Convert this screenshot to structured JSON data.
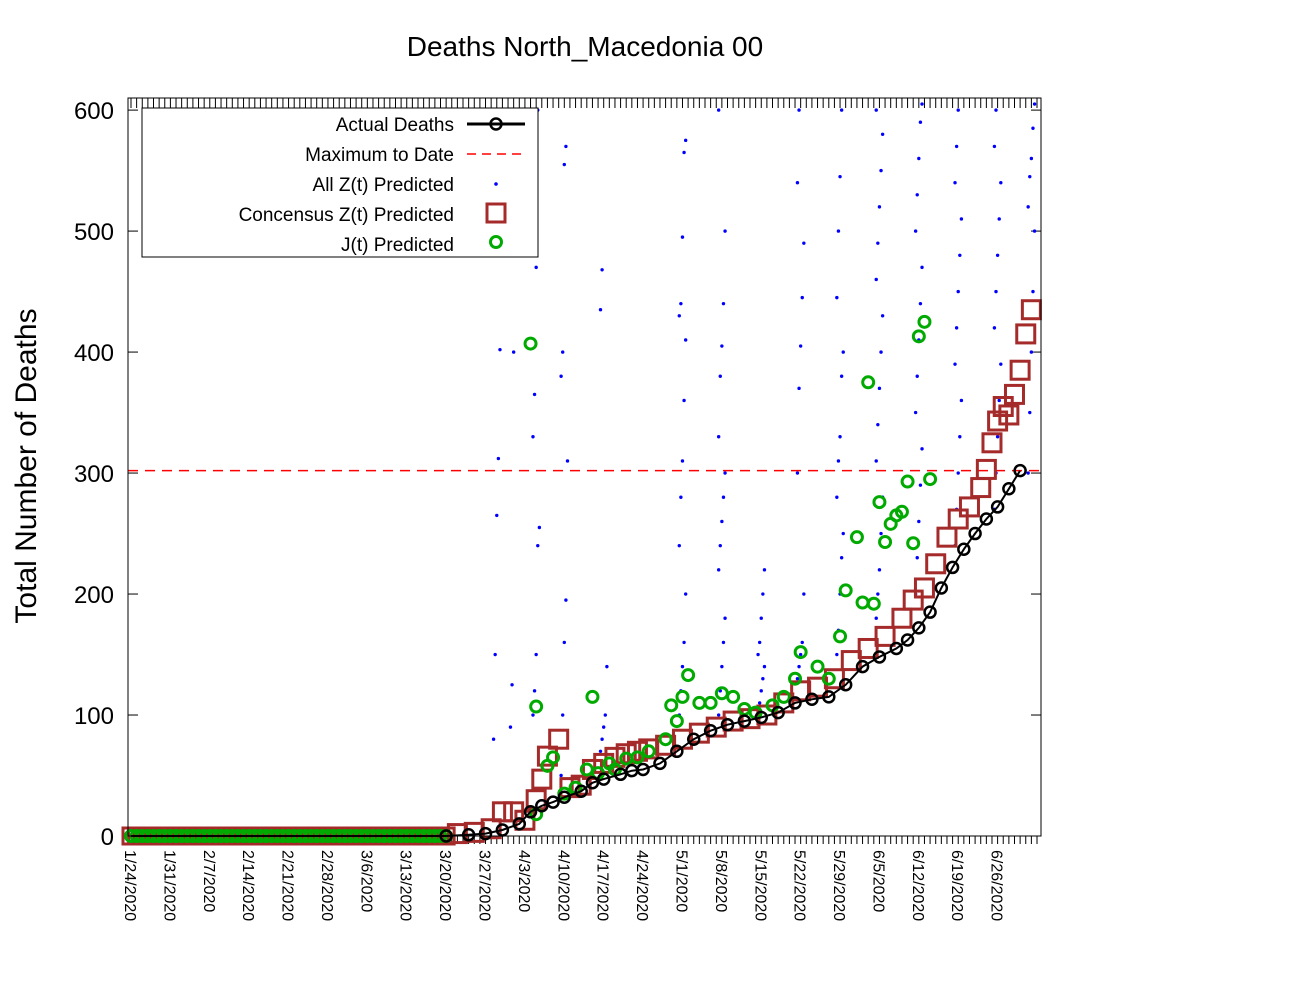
{
  "chart_data": {
    "type": "scatter",
    "title": "Deaths North_Macedonia 00",
    "ylabel": "Total Number of Deaths",
    "xlabel": "",
    "ylim": [
      0,
      610
    ],
    "y_ticks": [
      0,
      100,
      200,
      300,
      400,
      500,
      600
    ],
    "x_start_date": "1/24/2020",
    "x_end_date": "7/3/2020",
    "x_tick_labels": [
      "1/24/2020",
      "1/31/2020",
      "2/7/2020",
      "2/14/2020",
      "2/21/2020",
      "2/28/2020",
      "3/6/2020",
      "3/13/2020",
      "3/20/2020",
      "3/27/2020",
      "4/3/2020",
      "4/10/2020",
      "4/17/2020",
      "4/24/2020",
      "5/1/2020",
      "5/8/2020",
      "5/15/2020",
      "5/22/2020",
      "5/29/2020",
      "6/5/2020",
      "6/12/2020",
      "6/19/2020",
      "6/26/2020"
    ],
    "max_to_date": 302,
    "legend": {
      "placement": "top-left",
      "entries": [
        "Actual Deaths",
        "Maximum to Date",
        "All Z(t) Predicted",
        "Concensus Z(t) Predicted",
        "J(t) Predicted"
      ]
    },
    "colors": {
      "actual": "#000000",
      "max": "#ff0000",
      "all_z": "#0000ff",
      "consensus": "#a52a2a",
      "jt": "#00aa00"
    },
    "series": [
      {
        "name": "Actual Deaths",
        "points": [
          [
            "3/20/2020",
            0
          ],
          [
            "3/24/2020",
            1
          ],
          [
            "3/27/2020",
            2
          ],
          [
            "3/30/2020",
            5
          ],
          [
            "4/2/2020",
            10
          ],
          [
            "4/4/2020",
            20
          ],
          [
            "4/6/2020",
            25
          ],
          [
            "4/8/2020",
            28
          ],
          [
            "4/10/2020",
            32
          ],
          [
            "4/13/2020",
            37
          ],
          [
            "4/15/2020",
            44
          ],
          [
            "4/17/2020",
            47
          ],
          [
            "4/20/2020",
            51
          ],
          [
            "4/22/2020",
            54
          ],
          [
            "4/24/2020",
            55
          ],
          [
            "4/27/2020",
            60
          ],
          [
            "4/30/2020",
            70
          ],
          [
            "5/3/2020",
            80
          ],
          [
            "5/6/2020",
            87
          ],
          [
            "5/9/2020",
            92
          ],
          [
            "5/12/2020",
            95
          ],
          [
            "5/15/2020",
            98
          ],
          [
            "5/18/2020",
            102
          ],
          [
            "5/21/2020",
            110
          ],
          [
            "5/24/2020",
            113
          ],
          [
            "5/27/2020",
            115
          ],
          [
            "5/30/2020",
            125
          ],
          [
            "6/2/2020",
            140
          ],
          [
            "6/5/2020",
            148
          ],
          [
            "6/8/2020",
            155
          ],
          [
            "6/10/2020",
            162
          ],
          [
            "6/12/2020",
            172
          ],
          [
            "6/14/2020",
            185
          ],
          [
            "6/16/2020",
            205
          ],
          [
            "6/18/2020",
            222
          ],
          [
            "6/20/2020",
            237
          ],
          [
            "6/22/2020",
            250
          ],
          [
            "6/24/2020",
            262
          ],
          [
            "6/26/2020",
            272
          ],
          [
            "6/28/2020",
            287
          ],
          [
            "6/30/2020",
            302
          ]
        ]
      },
      {
        "name": "Concensus Z(t) Predicted",
        "points": [
          [
            "3/22/2020",
            2
          ],
          [
            "3/25/2020",
            3
          ],
          [
            "3/28/2020",
            6
          ],
          [
            "3/30/2020",
            20
          ],
          [
            "4/1/2020",
            20
          ],
          [
            "4/3/2020",
            13
          ],
          [
            "4/5/2020",
            30
          ],
          [
            "4/6/2020",
            47
          ],
          [
            "4/7/2020",
            66
          ],
          [
            "4/9/2020",
            80
          ],
          [
            "4/11/2020",
            40
          ],
          [
            "4/13/2020",
            42
          ],
          [
            "4/15/2020",
            55
          ],
          [
            "4/17/2020",
            60
          ],
          [
            "4/19/2020",
            65
          ],
          [
            "4/21/2020",
            68
          ],
          [
            "4/23/2020",
            70
          ],
          [
            "4/25/2020",
            72
          ],
          [
            "4/28/2020",
            75
          ],
          [
            "5/1/2020",
            80
          ],
          [
            "5/4/2020",
            85
          ],
          [
            "5/7/2020",
            90
          ],
          [
            "5/10/2020",
            95
          ],
          [
            "5/13/2020",
            97
          ],
          [
            "5/16/2020",
            100
          ],
          [
            "5/19/2020",
            110
          ],
          [
            "5/22/2020",
            120
          ],
          [
            "5/25/2020",
            123
          ],
          [
            "5/28/2020",
            130
          ],
          [
            "5/31/2020",
            145
          ],
          [
            "6/3/2020",
            155
          ],
          [
            "6/6/2020",
            165
          ],
          [
            "6/9/2020",
            180
          ],
          [
            "6/11/2020",
            195
          ],
          [
            "6/13/2020",
            205
          ],
          [
            "6/15/2020",
            225
          ],
          [
            "6/17/2020",
            247
          ],
          [
            "6/19/2020",
            262
          ],
          [
            "6/21/2020",
            272
          ],
          [
            "6/23/2020",
            288
          ],
          [
            "6/24/2020",
            303
          ],
          [
            "6/25/2020",
            325
          ],
          [
            "6/26/2020",
            343
          ],
          [
            "6/27/2020",
            355
          ],
          [
            "6/28/2020",
            348
          ],
          [
            "6/29/2020",
            365
          ],
          [
            "6/30/2020",
            385
          ],
          [
            "7/1/2020",
            415
          ],
          [
            "7/2/2020",
            435
          ]
        ]
      },
      {
        "name": "J(t) Predicted",
        "points": [
          [
            "4/5/2020",
            18
          ],
          [
            "4/4/2020",
            407
          ],
          [
            "4/5/2020",
            107
          ],
          [
            "4/7/2020",
            58
          ],
          [
            "4/8/2020",
            65
          ],
          [
            "4/10/2020",
            35
          ],
          [
            "4/12/2020",
            40
          ],
          [
            "4/14/2020",
            55
          ],
          [
            "4/15/2020",
            115
          ],
          [
            "4/16/2020",
            52
          ],
          [
            "4/18/2020",
            60
          ],
          [
            "4/19/2020",
            55
          ],
          [
            "4/21/2020",
            64
          ],
          [
            "4/23/2020",
            65
          ],
          [
            "4/25/2020",
            70
          ],
          [
            "4/28/2020",
            80
          ],
          [
            "4/29/2020",
            108
          ],
          [
            "4/30/2020",
            95
          ],
          [
            "5/1/2020",
            115
          ],
          [
            "5/2/2020",
            133
          ],
          [
            "5/4/2020",
            110
          ],
          [
            "5/6/2020",
            110
          ],
          [
            "5/8/2020",
            118
          ],
          [
            "5/10/2020",
            115
          ],
          [
            "5/12/2020",
            105
          ],
          [
            "5/14/2020",
            102
          ],
          [
            "5/17/2020",
            108
          ],
          [
            "5/19/2020",
            115
          ],
          [
            "5/21/2020",
            130
          ],
          [
            "5/22/2020",
            152
          ],
          [
            "5/25/2020",
            140
          ],
          [
            "5/27/2020",
            130
          ],
          [
            "5/29/2020",
            165
          ],
          [
            "5/30/2020",
            203
          ],
          [
            "6/1/2020",
            247
          ],
          [
            "6/2/2020",
            193
          ],
          [
            "6/3/2020",
            375
          ],
          [
            "6/4/2020",
            192
          ],
          [
            "6/5/2020",
            276
          ],
          [
            "6/6/2020",
            243
          ],
          [
            "6/7/2020",
            258
          ],
          [
            "6/8/2020",
            265
          ],
          [
            "6/9/2020",
            268
          ],
          [
            "6/10/2020",
            293
          ],
          [
            "6/11/2020",
            242
          ],
          [
            "6/12/2020",
            413
          ],
          [
            "6/13/2020",
            425
          ],
          [
            "6/14/2020",
            295
          ]
        ]
      },
      {
        "name": "All Z(t) Predicted",
        "clusters": [
          {
            "day": "3/29/2020",
            "values": [
              80,
              150,
              265,
              312,
              402
            ]
          },
          {
            "day": "4/1/2020",
            "values": [
              90,
              125,
              400,
              535,
              575
            ]
          },
          {
            "day": "4/5/2020",
            "values": [
              100,
              120,
              150,
              240,
              255,
              330,
              365,
              470,
              600
            ]
          },
          {
            "day": "4/10/2020",
            "values": [
              50,
              100,
              160,
              195,
              310,
              380,
              400,
              555,
              570
            ]
          },
          {
            "day": "4/17/2020",
            "values": [
              70,
              80,
              90,
              100,
              140,
              435,
              468
            ]
          },
          {
            "day": "5/1/2020",
            "values": [
              100,
              120,
              140,
              160,
              200,
              240,
              280,
              310,
              360,
              410,
              430,
              440,
              495,
              565,
              575
            ]
          },
          {
            "day": "5/8/2020",
            "values": [
              100,
              120,
              140,
              160,
              180,
              220,
              240,
              260,
              280,
              300,
              330,
              380,
              405,
              440,
              500,
              600
            ]
          },
          {
            "day": "5/15/2020",
            "values": [
              100,
              110,
              120,
              130,
              140,
              150,
              160,
              180,
              200,
              220
            ]
          },
          {
            "day": "5/22/2020",
            "values": [
              130,
              140,
              150,
              160,
              200,
              300,
              370,
              405,
              445,
              490,
              540,
              600
            ]
          },
          {
            "day": "5/29/2020",
            "values": [
              150,
              170,
              200,
              230,
              250,
              280,
              310,
              330,
              380,
              400,
              445,
              500,
              545,
              600
            ]
          },
          {
            "day": "6/5/2020",
            "values": [
              180,
              200,
              220,
              250,
              280,
              310,
              340,
              370,
              400,
              430,
              460,
              490,
              520,
              550,
              580,
              600
            ]
          },
          {
            "day": "6/12/2020",
            "values": [
              200,
              230,
              260,
              290,
              320,
              350,
              380,
              410,
              440,
              470,
              500,
              530,
              560,
              590,
              605
            ]
          },
          {
            "day": "6/19/2020",
            "values": [
              240,
              270,
              300,
              330,
              360,
              390,
              420,
              450,
              480,
              510,
              540,
              570,
              600
            ]
          },
          {
            "day": "6/26/2020",
            "values": [
              270,
              300,
              330,
              360,
              390,
              420,
              450,
              480,
              510,
              540,
              570,
              600
            ]
          },
          {
            "day": "7/2/2020",
            "values": [
              300,
              350,
              400,
              450,
              500,
              520,
              545,
              560,
              585,
              605
            ]
          }
        ]
      }
    ]
  }
}
